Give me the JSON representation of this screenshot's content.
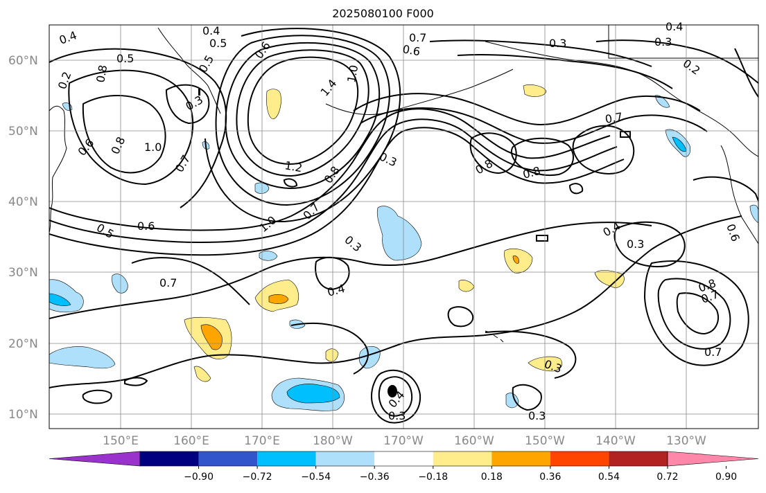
{
  "title": "2025080100 F000",
  "map": {
    "lat_labels": [
      "10°N",
      "20°N",
      "30°N",
      "40°N",
      "50°N",
      "60°N"
    ],
    "lon_labels": [
      "150°E",
      "160°E",
      "170°E",
      "180°W",
      "170°W",
      "160°W",
      "150°W",
      "140°W",
      "130°W"
    ],
    "contour_labels": [
      "0.4",
      "0.5",
      "0.5",
      "0.4",
      "0.6",
      "0.7",
      "0.3",
      "0.3",
      "0.4",
      "0.2",
      "1.0",
      "1.4",
      "1.2",
      "1.0",
      "0.8",
      "0.7",
      "0.3",
      "0.8",
      "0.8",
      "0.7",
      "0.6",
      "0.8",
      "1.0",
      "0.7",
      "0.6",
      "0.5",
      "0.4",
      "0.3",
      "0.4",
      "0.3",
      "0.8",
      "0.7",
      "0.7",
      "0.3",
      "0.3",
      "0.3",
      "0.4",
      "0.7",
      "0.5",
      "0.6",
      "0.3",
      "0.6",
      "0.2",
      "0.8"
    ],
    "grid": true,
    "colors": {
      "contour": "#000000",
      "grid": "#888888",
      "coast": "#000000"
    }
  },
  "colorbar": {
    "ticks": [
      "−0.90",
      "−0.72",
      "−0.54",
      "−0.36",
      "−0.18",
      "0.18",
      "0.36",
      "0.54",
      "0.72",
      "0.90"
    ],
    "colors": [
      "#9933cc",
      "#000080",
      "#3355cc",
      "#00bfff",
      "#aee0fb",
      "#ffffff",
      "#ffec8b",
      "#ffa500",
      "#ff4500",
      "#b22222",
      "#ff88aa"
    ]
  }
}
